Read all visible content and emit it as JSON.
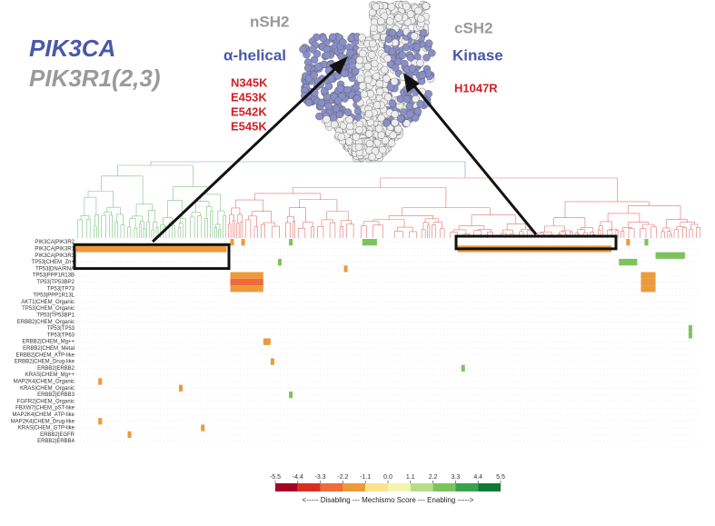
{
  "labels": {
    "gene1": "PIK3CA",
    "gene2": "PIK3R1(2,3)",
    "nsh2": "nSH2",
    "csh2": "cSH2",
    "helical": "α-helical",
    "kinase": "Kinase",
    "mutations_left": [
      "N345K",
      "E453K",
      "E542K",
      "E545K"
    ],
    "mutations_right": [
      "H1047R"
    ]
  },
  "heatmap": {
    "rows": [
      "PIK3CA|PIK3R2",
      "PIK3CA|PIK3R1",
      "PIK3CA|PIK3R3",
      "TP53|CHEM_Zn+",
      "TP53|DNA/RNA",
      "TP53|PPP1R13B",
      "TP53|TP53BP2",
      "TP53|TP73",
      "TP53|PPP1R13L",
      "AKT1|CHEM_Organic",
      "TP53|CHEM_Organic",
      "TP53|TP53BP1",
      "ERBB2|CHEM_Organic",
      "TP53|TP53",
      "TP53|TP63",
      "ERBB2|CHEM_Mg++",
      "ERBB2|CHEM_Metal",
      "ERBB2|CHEM_ATP-like",
      "ERBB2|CHEM_Drug-like",
      "ERBB2|ERBB2",
      "KRAS|CHEM_Mg++",
      "MAP2K4|CHEM_Organic",
      "KRAS|CHEM_Organic",
      "ERBB2|ERBB3",
      "FGFR2|CHEM_Organic",
      "FBXW7|CHEM_pST-like",
      "MAP2K4|CHEM_ATP-like",
      "MAP2K4|CHEM_Drug-like",
      "KRAS|CHEM_GTP-like",
      "ERBB2|EGFR",
      "ERBB2|ERBB4"
    ],
    "n_columns": 170,
    "cells": [
      {
        "row": 1,
        "col": 0,
        "span": 41,
        "value": -1.6
      },
      {
        "row": 1,
        "col": 104,
        "span": 42,
        "value": -1.6
      },
      {
        "row": 0,
        "col": 42,
        "span": 1,
        "value": -1.6
      },
      {
        "row": 0,
        "col": 45,
        "span": 1,
        "value": -1.6
      },
      {
        "row": 0,
        "col": 58,
        "span": 1,
        "value": 2.7
      },
      {
        "row": 0,
        "col": 78,
        "span": 4,
        "value": 2.7
      },
      {
        "row": 0,
        "col": 150,
        "span": 1,
        "value": -1.6
      },
      {
        "row": 0,
        "col": 155,
        "span": 1,
        "value": 2.7
      },
      {
        "row": 2,
        "col": 158,
        "span": 8,
        "value": 2.7
      },
      {
        "row": 3,
        "col": 148,
        "span": 5,
        "value": 2.7
      },
      {
        "row": 3,
        "col": 55,
        "span": 1,
        "value": 2.7
      },
      {
        "row": 4,
        "col": 73,
        "span": 1,
        "value": -1.6
      },
      {
        "row": 5,
        "col": 42,
        "span": 9,
        "value": -1.6
      },
      {
        "row": 6,
        "col": 42,
        "span": 9,
        "value": -2.5
      },
      {
        "row": 7,
        "col": 42,
        "span": 9,
        "value": -1.6
      },
      {
        "row": 5,
        "col": 154,
        "span": 4,
        "value": -1.6
      },
      {
        "row": 6,
        "col": 154,
        "span": 4,
        "value": -1.6
      },
      {
        "row": 7,
        "col": 154,
        "span": 4,
        "value": -1.6
      },
      {
        "row": 13,
        "col": 167,
        "span": 1,
        "value": 2.7
      },
      {
        "row": 14,
        "col": 167,
        "span": 1,
        "value": 2.7
      },
      {
        "row": 15,
        "col": 51,
        "span": 2,
        "value": -1.6
      },
      {
        "row": 18,
        "col": 53,
        "span": 1,
        "value": -1.6
      },
      {
        "row": 19,
        "col": 105,
        "span": 1,
        "value": 2.7
      },
      {
        "row": 21,
        "col": 6,
        "span": 1,
        "value": -1.6
      },
      {
        "row": 22,
        "col": 28,
        "span": 1,
        "value": -1.6
      },
      {
        "row": 23,
        "col": 58,
        "span": 1,
        "value": 2.7
      },
      {
        "row": 27,
        "col": 6,
        "span": 1,
        "value": -1.6
      },
      {
        "row": 28,
        "col": 34,
        "span": 1,
        "value": -1.6
      },
      {
        "row": 29,
        "col": 14,
        "span": 1,
        "value": -1.6
      }
    ]
  },
  "colorbar": {
    "ticks": [
      -5.5,
      -4.4,
      -3.3,
      -2.2,
      -1.1,
      {
        "value": 0,
        "label": "0.0"
      },
      1.1,
      2.2,
      3.3,
      4.4,
      5.5
    ],
    "colors": [
      "#a50026",
      "#d7301f",
      "#f06a3a",
      "#ec9a3a",
      "#fbe38c",
      "#f2f5b0",
      "#b7dc8a",
      "#7cc35c",
      "#3aa24a",
      "#0f7a34"
    ],
    "caption": "<----- Disabling --- Mechismo Score --- Enabling ----->"
  }
}
